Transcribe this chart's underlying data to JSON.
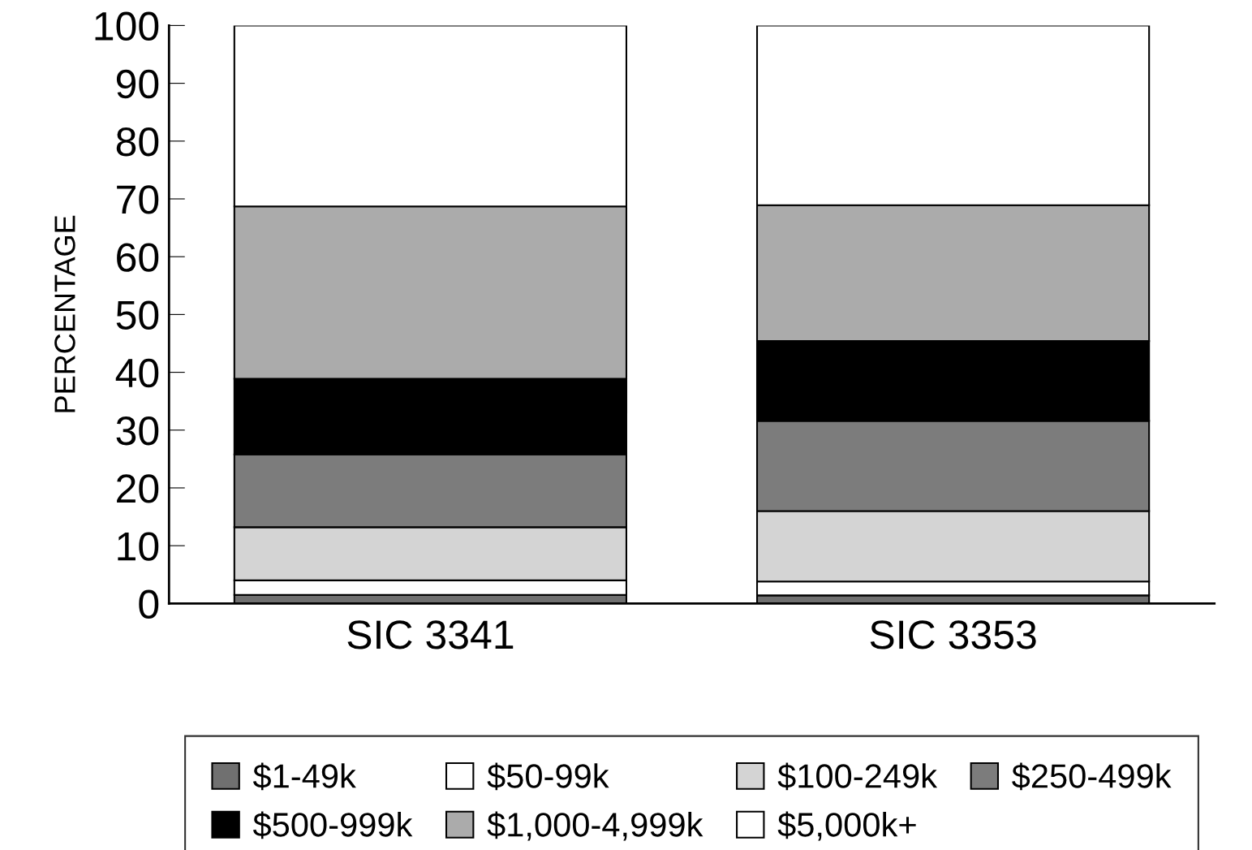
{
  "chart_data": {
    "type": "bar",
    "stacked": true,
    "ylabel": "PERCENTAGE",
    "categories": [
      "SIC 3341",
      "SIC 3353"
    ],
    "series": [
      {
        "name": "$1-49k",
        "color": "#707070",
        "values": [
          1.5,
          1.4
        ]
      },
      {
        "name": "$50-99k",
        "color": "#ffffff",
        "values": [
          2.5,
          2.4
        ]
      },
      {
        "name": "$100-249k",
        "color": "#d4d4d4",
        "values": [
          9.2,
          12.2
        ]
      },
      {
        "name": "$250-499k",
        "color": "#7c7c7c",
        "values": [
          12.6,
          15.6
        ]
      },
      {
        "name": "$500-999k",
        "color": "#000000",
        "values": [
          13.1,
          13.8
        ]
      },
      {
        "name": "$1,000-4,999k",
        "color": "#ababab",
        "values": [
          29.8,
          23.5
        ]
      },
      {
        "name": "$5,000k+",
        "color": "#ffffff",
        "values": [
          31.3,
          31.1
        ]
      }
    ],
    "ylim": [
      0,
      100
    ],
    "yticks": [
      0,
      10,
      20,
      30,
      40,
      50,
      60,
      70,
      80,
      90,
      100
    ],
    "grid": false,
    "legend": "bottom"
  }
}
